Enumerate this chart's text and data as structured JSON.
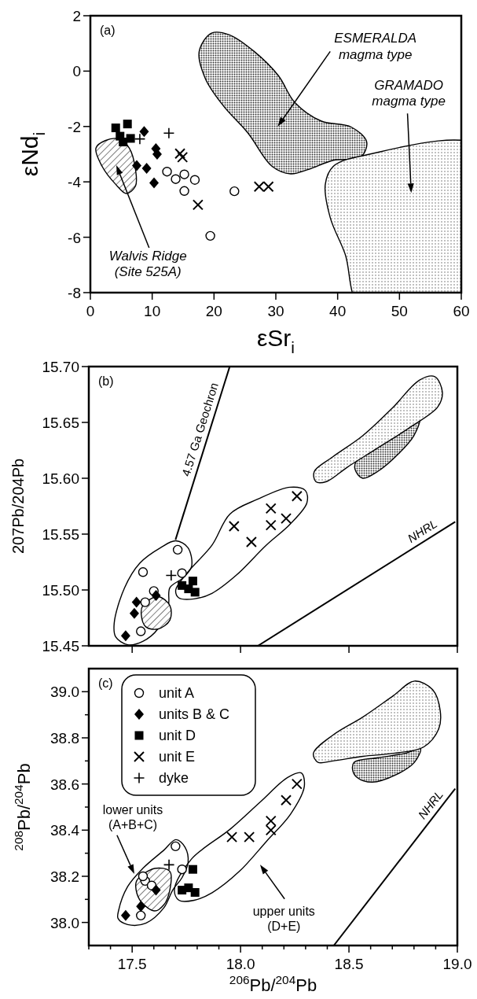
{
  "chart_data": [
    {
      "type": "scatter",
      "title": "(a)",
      "xlabel": "εSr$_{i}$",
      "ylabel": "εNd$_{i}$",
      "xlim": [
        0,
        60
      ],
      "ylim": [
        -8,
        2
      ],
      "xticks": [
        0,
        10,
        20,
        30,
        40,
        50,
        60
      ],
      "yticks": [
        -8,
        -6,
        -4,
        -2,
        0,
        2
      ],
      "annotations": [
        "ESMERALDA\nmagma type",
        "GRAMADO\nmagma type",
        "Walvis Ridge\n(Site 525A)"
      ],
      "series": [
        {
          "color": "#000000",
          "marker": "circle",
          "x": [
            12.4,
            13.8,
            15.2,
            16.9,
            15.2,
            23.3,
            19.4
          ],
          "values": [
            -3.63,
            -3.9,
            -3.73,
            -3.93,
            -4.33,
            -4.34,
            -5.95
          ]
        },
        {
          "color": "#000000",
          "marker": "diamond",
          "x": [
            8.7,
            10.6,
            10.8,
            7.5,
            9.1,
            10.3
          ],
          "values": [
            -2.18,
            -2.8,
            -3.0,
            -3.41,
            -3.51,
            -4.04
          ]
        },
        {
          "color": "#000000",
          "marker": "square",
          "x": [
            4.1,
            6.0,
            4.8,
            6.5,
            5.3
          ],
          "values": [
            -2.05,
            -1.91,
            -2.35,
            -2.43,
            -2.56
          ]
        },
        {
          "color": "#000000",
          "marker": "x",
          "x": [
            14.5,
            14.9,
            17.4,
            27.3,
            28.8
          ],
          "values": [
            -2.98,
            -3.11,
            -4.83,
            -4.17,
            -4.17
          ]
        },
        {
          "color": "#000000",
          "marker": "cross",
          "x": [
            12.7,
            8.0
          ],
          "values": [
            -2.24,
            -2.45
          ]
        }
      ]
    },
    {
      "type": "scatter",
      "title": "(b)",
      "ylabel": "207Pb/204Pb",
      "xlim": [
        17.3,
        19.0
      ],
      "ylim": [
        15.45,
        15.7
      ],
      "tick_labels": "y",
      "xticks": [
        17.5,
        18,
        18.5,
        19
      ],
      "yticks": [
        {
          "value": 15.45,
          "label": "15.45"
        },
        {
          "value": 15.5,
          "label": "15.50"
        },
        {
          "value": 15.55,
          "label": "15.55"
        },
        {
          "value": 15.6,
          "label": "15.60"
        },
        {
          "value": 15.65,
          "label": "15.65"
        },
        {
          "value": 15.7,
          "label": "15.70"
        }
      ],
      "series": [
        {
          "color": "#000000",
          "marker": "circle",
          "x": [
            17.71,
            17.55,
            17.73,
            17.6,
            17.56,
            17.54
          ],
          "values": [
            15.536,
            15.516,
            15.515,
            15.499,
            15.489,
            15.463
          ]
        },
        {
          "color": "#000000",
          "marker": "diamond",
          "x": [
            17.52,
            17.51,
            17.61,
            17.47
          ],
          "values": [
            15.489,
            15.479,
            15.495,
            15.459
          ]
        },
        {
          "color": "#000000",
          "marker": "square",
          "x": [
            17.73,
            17.78,
            17.76,
            17.79
          ],
          "values": [
            15.504,
            15.508,
            15.501,
            15.498
          ]
        },
        {
          "color": "#000000",
          "marker": "x",
          "x": [
            17.97,
            18.05,
            18.14,
            18.14,
            18.21,
            18.26
          ],
          "values": [
            15.557,
            15.543,
            15.573,
            15.558,
            15.564,
            15.584
          ]
        },
        {
          "color": "#000000",
          "marker": "cross",
          "x": [
            17.68
          ],
          "values": [
            15.513
          ]
        },
        {
          "type": "line",
          "name": "4.57 Ga Geochron",
          "color": "#000000",
          "x": [
            17.7,
            17.95
          ],
          "values": [
            15.545,
            15.7
          ]
        },
        {
          "type": "line",
          "name": "NHRL",
          "color": "#000000",
          "x": [
            18.08,
            18.99
          ],
          "values": [
            15.45,
            15.561
          ]
        }
      ]
    },
    {
      "type": "scatter",
      "title": "(c)",
      "xlabel": "$^{206}$Pb/$^{204}$Pb",
      "ylabel": "$^{208}$Pb/$^{204}$Pb",
      "xlim": [
        17.3,
        19.0
      ],
      "ylim": [
        37.9,
        39.1
      ],
      "legend": "top left",
      "xticks": [
        {
          "value": 17.3,
          "label": null
        },
        {
          "value": 17.4,
          "label": null
        },
        17.5,
        {
          "value": 17.6,
          "label": null
        },
        {
          "value": 17.7,
          "label": null
        },
        {
          "value": 17.8,
          "label": null
        },
        {
          "value": 17.9,
          "label": null
        },
        {
          "value": 18,
          "label": "18.0"
        },
        {
          "value": 18.1,
          "label": null
        },
        {
          "value": 18.2,
          "label": null
        },
        {
          "value": 18.3,
          "label": null
        },
        {
          "value": 18.4,
          "label": null
        },
        18.5,
        {
          "value": 18.6,
          "label": null
        },
        {
          "value": 18.7,
          "label": null
        },
        {
          "value": 18.8,
          "label": null
        },
        {
          "value": 18.9,
          "label": null
        },
        {
          "value": 19,
          "label": "19.0"
        }
      ],
      "yticks": [
        {
          "value": 38,
          "label": "38.0"
        },
        {
          "value": 38.1,
          "label": null
        },
        38.2,
        {
          "value": 38.3,
          "label": null
        },
        38.4,
        {
          "value": 38.5,
          "label": null
        },
        38.6,
        {
          "value": 38.7,
          "label": null
        },
        38.8,
        {
          "value": 38.9,
          "label": null
        },
        {
          "value": 39,
          "label": "39.0"
        }
      ],
      "annotations": [
        "lower units\n(A+B+C)",
        "upper units\n(D+E)"
      ],
      "series": [
        {
          "name": "unit A",
          "color": "#000000",
          "marker": "circle",
          "x": [
            17.7,
            17.73,
            17.56,
            17.59,
            17.54,
            17.55
          ],
          "values": [
            38.33,
            38.23,
            38.18,
            38.16,
            38.03,
            38.2
          ]
        },
        {
          "name": "units B & C",
          "color": "#000000",
          "marker": "diamond",
          "x": [
            17.47,
            17.54,
            17.61
          ],
          "values": [
            38.03,
            38.07,
            38.14
          ]
        },
        {
          "name": "unit D",
          "color": "#000000",
          "marker": "square",
          "x": [
            17.78,
            17.73,
            17.76,
            17.79
          ],
          "values": [
            38.23,
            38.14,
            38.15,
            38.13
          ]
        },
        {
          "name": "unit E",
          "color": "#000000",
          "marker": "x",
          "x": [
            17.96,
            18.04,
            18.14,
            18.14,
            18.21,
            18.26
          ],
          "values": [
            38.37,
            38.37,
            38.4,
            38.44,
            38.53,
            38.6
          ]
        },
        {
          "name": "dyke",
          "color": "#000000",
          "marker": "cross",
          "x": [
            17.67
          ],
          "values": [
            38.25
          ]
        },
        {
          "type": "line",
          "name": "NHRL",
          "color": "#000000",
          "x": [
            18.43,
            18.99
          ],
          "values": [
            37.9,
            38.58
          ]
        }
      ]
    }
  ]
}
